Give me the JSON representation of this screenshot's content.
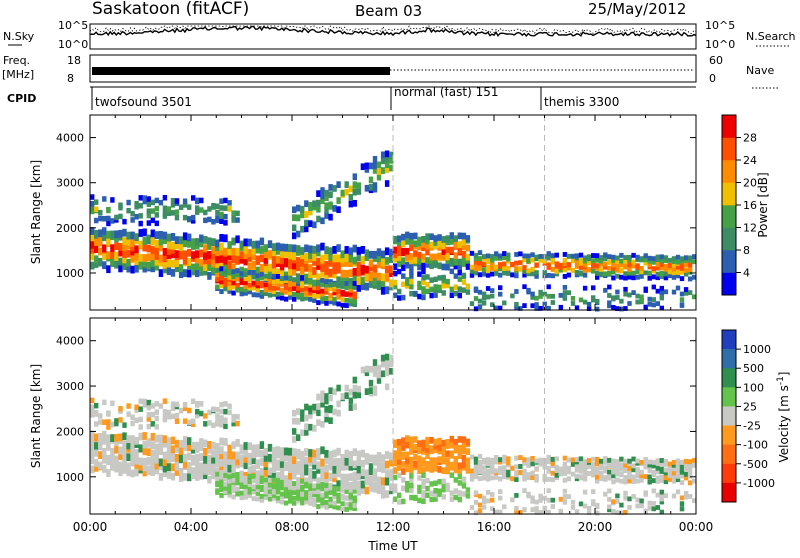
{
  "header": {
    "station": "Saskatoon (fitACF)",
    "beam": "Beam 03",
    "date": "25/May/2012"
  },
  "panels": {
    "nsky": {
      "label": "N.Sky",
      "right_label": "N.Search",
      "ticks_left": [
        "10^5",
        "10^0"
      ],
      "ticks_right": [
        "10^5",
        "10^0"
      ]
    },
    "freq": {
      "label": "Freq.",
      "unit": "[MHz]",
      "ticks_left": [
        "18",
        "8"
      ],
      "right_label": "Nave",
      "ticks_right": [
        "60",
        "0"
      ]
    },
    "cpid": {
      "label": "CPID",
      "modes": [
        {
          "name": "twofsound 3501",
          "start_hour": 0,
          "end_hour": 12
        },
        {
          "name": "normal (fast) 151",
          "start_hour": 12,
          "end_hour": 18
        },
        {
          "name": "themis 3300",
          "start_hour": 18,
          "end_hour": 24
        }
      ]
    }
  },
  "chart_data": [
    {
      "type": "heatmap",
      "title": "",
      "ylabel": "Slant Range [km]",
      "xlabel": "Time UT",
      "ylim": [
        180,
        4500
      ],
      "yticks": [
        "1000",
        "2000",
        "3000",
        "4000"
      ],
      "xlim_hours": [
        0,
        24
      ],
      "xticks": [
        "00:00",
        "04:00",
        "08:00",
        "12:00",
        "16:00",
        "20:00",
        "00:00"
      ],
      "colorbar": {
        "label": "Power [dB]",
        "ticks": [
          "4",
          "8",
          "12",
          "16",
          "20",
          "24",
          "28"
        ],
        "colors": [
          "#0000ee",
          "#2d5fb0",
          "#3c8c64",
          "#46a046",
          "#f0c000",
          "#ff8c00",
          "#ff5000",
          "#ee0000"
        ],
        "range": [
          0,
          32
        ]
      }
    },
    {
      "type": "heatmap",
      "title": "",
      "ylabel": "Slant Range [km]",
      "xlabel": "Time UT",
      "ylim": [
        180,
        4500
      ],
      "yticks": [
        "1000",
        "2000",
        "3000",
        "4000"
      ],
      "xlim_hours": [
        0,
        24
      ],
      "xticks": [
        "00:00",
        "04:00",
        "08:00",
        "12:00",
        "16:00",
        "20:00",
        "00:00"
      ],
      "colorbar": {
        "label": "Velocity [m s^-1]",
        "ticks": [
          "1000",
          "500",
          "100",
          "25",
          "-25",
          "-100",
          "-500",
          "-1000"
        ],
        "colors": [
          "#1f3fbf",
          "#2e6fa8",
          "#2f8f4f",
          "#63c34a",
          "#c8c8c4",
          "#ff9a1e",
          "#ff6e12",
          "#ff3b0a",
          "#e80000"
        ]
      }
    }
  ],
  "xaxis": {
    "label": "Time UT",
    "ticks": [
      "00:00",
      "04:00",
      "08:00",
      "12:00",
      "16:00",
      "20:00",
      "00:00"
    ]
  }
}
